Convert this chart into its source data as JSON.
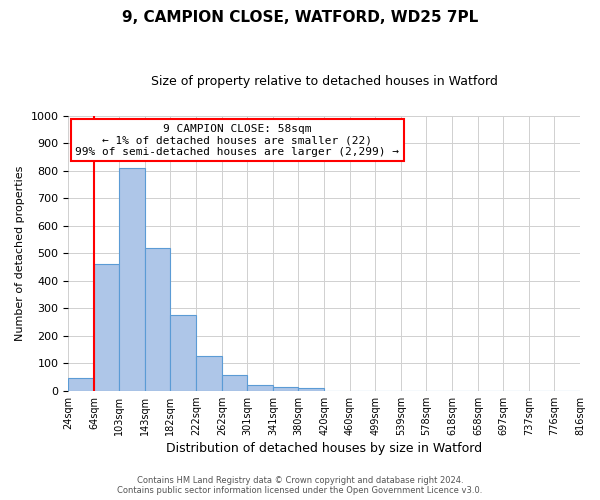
{
  "title": "9, CAMPION CLOSE, WATFORD, WD25 7PL",
  "subtitle": "Size of property relative to detached houses in Watford",
  "xlabel": "Distribution of detached houses by size in Watford",
  "ylabel": "Number of detached properties",
  "bar_labels": [
    "24sqm",
    "64sqm",
    "103sqm",
    "143sqm",
    "182sqm",
    "222sqm",
    "262sqm",
    "301sqm",
    "341sqm",
    "380sqm",
    "420sqm",
    "460sqm",
    "499sqm",
    "539sqm",
    "578sqm",
    "618sqm",
    "658sqm",
    "697sqm",
    "737sqm",
    "776sqm",
    "816sqm"
  ],
  "bin_edges": [
    24,
    64,
    103,
    143,
    182,
    222,
    262,
    301,
    341,
    380,
    420,
    460,
    499,
    539,
    578,
    618,
    658,
    697,
    737,
    776,
    816
  ],
  "bar_counts": [
    46,
    460,
    810,
    520,
    275,
    125,
    58,
    20,
    12,
    8,
    0,
    0,
    0,
    0,
    0,
    0,
    0,
    0,
    0,
    0
  ],
  "bar_color": "#aec6e8",
  "bar_edge_color": "#5b9bd5",
  "ylim": [
    0,
    1000
  ],
  "yticks": [
    0,
    100,
    200,
    300,
    400,
    500,
    600,
    700,
    800,
    900,
    1000
  ],
  "red_line_x": 64,
  "annotation_title": "9 CAMPION CLOSE: 58sqm",
  "annotation_line1": "← 1% of detached houses are smaller (22)",
  "annotation_line2": "99% of semi-detached houses are larger (2,299) →",
  "footer1": "Contains HM Land Registry data © Crown copyright and database right 2024.",
  "footer2": "Contains public sector information licensed under the Open Government Licence v3.0.",
  "grid_color": "#d0d0d0",
  "background_color": "#ffffff"
}
